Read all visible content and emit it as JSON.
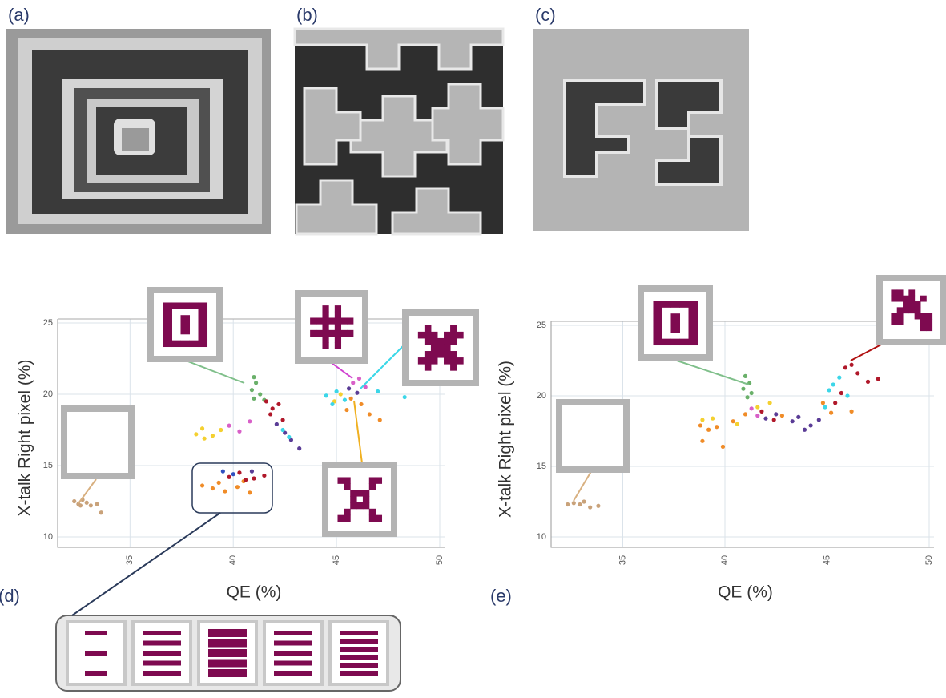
{
  "panels": [
    "(a)",
    "(b)",
    "(c)",
    "(d)",
    "(e)"
  ],
  "chart_data": [
    {
      "type": "scatter",
      "xlabel": "QE (%)",
      "ylabel": "X-talk Right pixel (%)",
      "xlim": [
        32,
        50
      ],
      "ylim": [
        10,
        25
      ],
      "xticks": [
        35,
        40,
        45,
        50
      ],
      "yticks": [
        10,
        15,
        20,
        25
      ],
      "grid": true,
      "series": [
        {
          "color": "#c9a27a",
          "x": [
            32.3,
            32.5,
            32.7,
            32.9,
            33.1,
            33.4,
            33.6,
            32.6
          ],
          "values": [
            12.5,
            12.3,
            12.6,
            12.4,
            12.2,
            12.3,
            11.7,
            12.2
          ]
        },
        {
          "color": "#6ab06a",
          "x": [
            41.0,
            41.1,
            40.9,
            41.3,
            41.0,
            41.5
          ],
          "values": [
            21.2,
            20.8,
            20.3,
            20.0,
            19.7,
            19.6
          ]
        },
        {
          "color": "#f08c28",
          "x": [
            38.5,
            39.0,
            39.3,
            39.6,
            40.2,
            40.5,
            40.8,
            45.7,
            46.2,
            45.5,
            46.6,
            47.1
          ],
          "values": [
            13.6,
            13.4,
            13.8,
            13.2,
            13.5,
            13.9,
            13.1,
            19.7,
            19.3,
            18.9,
            18.6,
            18.2
          ]
        },
        {
          "color": "#b0182a",
          "x": [
            39.8,
            40.3,
            41.0,
            41.5,
            40.6,
            41.6,
            41.9,
            42.2,
            41.8,
            42.4
          ],
          "values": [
            14.2,
            14.5,
            14.1,
            14.3,
            14.0,
            19.5,
            19.0,
            19.3,
            18.6,
            18.2
          ]
        },
        {
          "color": "#3050c0",
          "x": [
            39.5,
            40.0
          ],
          "values": [
            14.6,
            14.4
          ]
        },
        {
          "color": "#f4d030",
          "x": [
            38.2,
            38.6,
            39.0,
            39.4,
            38.5,
            45.2,
            44.9
          ],
          "values": [
            17.2,
            16.9,
            17.1,
            17.5,
            17.6,
            20.0,
            19.5
          ]
        },
        {
          "color": "#d860c8",
          "x": [
            39.8,
            40.3,
            40.8,
            45.8,
            46.1,
            46.4
          ],
          "values": [
            17.8,
            17.4,
            18.1,
            20.8,
            21.1,
            20.5
          ]
        },
        {
          "color": "#5a3c96",
          "x": [
            40.9,
            42.5,
            42.8,
            43.2,
            42.1,
            46.0,
            45.6
          ],
          "values": [
            14.6,
            17.3,
            16.8,
            16.2,
            17.9,
            20.1,
            20.4
          ]
        },
        {
          "color": "#3cd6e8",
          "x": [
            42.4,
            42.7,
            44.5,
            45.0,
            45.4,
            44.8,
            47.0,
            48.3
          ],
          "values": [
            17.5,
            17.0,
            19.9,
            20.2,
            19.6,
            19.3,
            20.2,
            19.8
          ]
        }
      ]
    },
    {
      "type": "scatter",
      "xlabel": "QE (%)",
      "ylabel": "X-talk Right pixel (%)",
      "xlim": [
        32,
        50
      ],
      "ylim": [
        10,
        25
      ],
      "xticks": [
        35,
        40,
        45,
        50
      ],
      "yticks": [
        10,
        15,
        20,
        25
      ],
      "grid": true,
      "series": [
        {
          "color": "#c9a27a",
          "x": [
            32.3,
            32.6,
            32.9,
            33.1,
            33.4,
            33.8
          ],
          "values": [
            12.3,
            12.4,
            12.3,
            12.5,
            12.1,
            12.2
          ]
        },
        {
          "color": "#6ab06a",
          "x": [
            41.0,
            41.2,
            40.9,
            41.3,
            41.1
          ],
          "values": [
            21.4,
            20.9,
            20.5,
            20.2,
            19.9
          ]
        },
        {
          "color": "#f08c28",
          "x": [
            38.8,
            39.2,
            39.6,
            39.9,
            38.9,
            40.4,
            41.0,
            42.8,
            44.8,
            45.2,
            46.2
          ],
          "values": [
            17.9,
            17.6,
            17.8,
            16.4,
            16.8,
            18.2,
            18.7,
            18.6,
            19.5,
            18.8,
            18.9
          ]
        },
        {
          "color": "#f4d030",
          "x": [
            38.9,
            39.4,
            40.6,
            41.6,
            42.2
          ],
          "values": [
            18.3,
            18.4,
            18.0,
            19.2,
            19.5
          ]
        },
        {
          "color": "#5a3c96",
          "x": [
            42.0,
            42.5,
            43.3,
            43.9,
            44.2,
            43.6,
            44.6
          ],
          "values": [
            18.4,
            18.7,
            18.2,
            17.6,
            17.9,
            18.5,
            18.3
          ]
        },
        {
          "color": "#b0182a",
          "x": [
            41.8,
            42.4,
            45.4,
            45.9,
            46.2,
            46.5,
            47.0,
            47.5,
            45.7
          ],
          "values": [
            18.9,
            18.3,
            19.5,
            22.0,
            22.2,
            21.6,
            21.0,
            21.2,
            20.2
          ]
        },
        {
          "color": "#3cd6e8",
          "x": [
            45.3,
            45.6,
            45.1,
            46.0,
            44.9
          ],
          "values": [
            20.8,
            21.3,
            20.4,
            20.0,
            19.2
          ]
        },
        {
          "color": "#d860c8",
          "x": [
            41.3,
            41.6
          ],
          "values": [
            19.1,
            18.6
          ]
        }
      ]
    }
  ]
}
